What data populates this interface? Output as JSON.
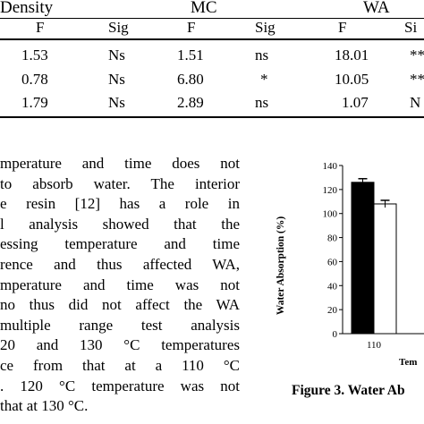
{
  "table": {
    "groups": [
      "Density",
      "MC",
      "WA"
    ],
    "subheaders": [
      "F",
      "Sig",
      "F",
      "Sig",
      "F",
      "Si"
    ],
    "rows": [
      [
        "1.53",
        "Ns",
        "1.51",
        "ns",
        "18.01",
        "**"
      ],
      [
        "0.78",
        "Ns",
        "6.80",
        "*",
        "10.05",
        "**"
      ],
      [
        "1.79",
        "Ns",
        "2.89",
        "ns",
        "1.07",
        "N"
      ]
    ]
  },
  "paragraph": [
    "mperature and time does not",
    "to absorb water. The interior",
    "e resin [12] has a role in",
    "l analysis showed that the",
    "essing temperature and time",
    "rence and thus affected WA,",
    "mperature and time was not",
    "no thus did not affect the WA",
    " multiple range test analysis",
    "20 and 130 °C temperatures",
    "ce from that at a 110 °C",
    ". 120 °C temperature was not",
    "that at 130 °C."
  ],
  "chart_data": {
    "type": "bar",
    "categories": [
      "110"
    ],
    "series": [
      {
        "values": [
          126
        ],
        "error": [
          3
        ]
      },
      {
        "values": [
          108
        ],
        "error": [
          3
        ]
      }
    ],
    "ylabel": "Water Absorption (%)",
    "xlabel": "Tem",
    "ylim": [
      0,
      140
    ],
    "yticks": [
      "0",
      "20",
      "40",
      "60",
      "80",
      "100",
      "120",
      "140"
    ],
    "colors": [
      "#000000",
      "#ffffff"
    ]
  },
  "caption": "Figure 3. Water Ab"
}
